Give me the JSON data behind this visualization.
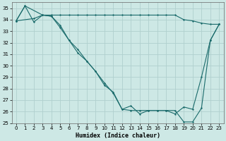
{
  "xlabel": "Humidex (Indice chaleur)",
  "background_color": "#cde8e5",
  "grid_color": "#b0d0ce",
  "line_color": "#1a6b6b",
  "xlim": [
    -0.5,
    23.5
  ],
  "ylim": [
    25,
    35.5
  ],
  "xticks": [
    0,
    1,
    2,
    3,
    4,
    5,
    6,
    7,
    8,
    9,
    10,
    11,
    12,
    13,
    14,
    15,
    16,
    17,
    18,
    19,
    20,
    21,
    22,
    23
  ],
  "yticks": [
    25,
    26,
    27,
    28,
    29,
    30,
    31,
    32,
    33,
    34,
    35
  ],
  "series1_x": [
    0,
    1,
    2,
    3,
    4,
    5,
    6,
    7,
    8,
    9,
    10,
    11,
    12,
    13,
    14,
    15,
    16,
    17,
    18,
    19,
    20,
    21,
    22,
    23
  ],
  "series1_y": [
    33.9,
    35.2,
    33.8,
    34.4,
    34.3,
    33.5,
    32.2,
    31.1,
    30.4,
    29.5,
    28.3,
    27.7,
    26.2,
    26.5,
    25.8,
    26.1,
    26.1,
    26.1,
    26.1,
    25.1,
    25.1,
    26.3,
    32.2,
    33.6
  ],
  "series2_x": [
    0,
    1,
    3,
    4,
    5,
    6,
    7,
    8,
    9,
    10,
    11,
    12,
    13,
    14,
    15,
    16,
    17,
    18,
    19,
    20,
    21,
    22,
    23
  ],
  "series2_y": [
    33.9,
    35.2,
    34.4,
    34.3,
    33.3,
    32.2,
    31.4,
    30.4,
    29.5,
    28.5,
    27.6,
    26.2,
    26.1,
    26.1,
    26.1,
    26.1,
    26.1,
    25.8,
    26.4,
    26.2,
    29.0,
    32.2,
    33.6
  ],
  "series3_x": [
    0,
    2,
    3,
    4,
    5,
    6,
    7,
    8,
    9,
    10,
    11,
    12,
    13,
    14,
    15,
    16,
    17,
    18,
    19,
    20,
    21,
    22,
    23
  ],
  "series3_y": [
    33.9,
    34.1,
    34.4,
    34.4,
    34.4,
    34.4,
    34.4,
    34.4,
    34.4,
    34.4,
    34.4,
    34.4,
    34.4,
    34.4,
    34.4,
    34.4,
    34.4,
    34.4,
    34.0,
    33.9,
    33.7,
    33.6,
    33.6
  ]
}
